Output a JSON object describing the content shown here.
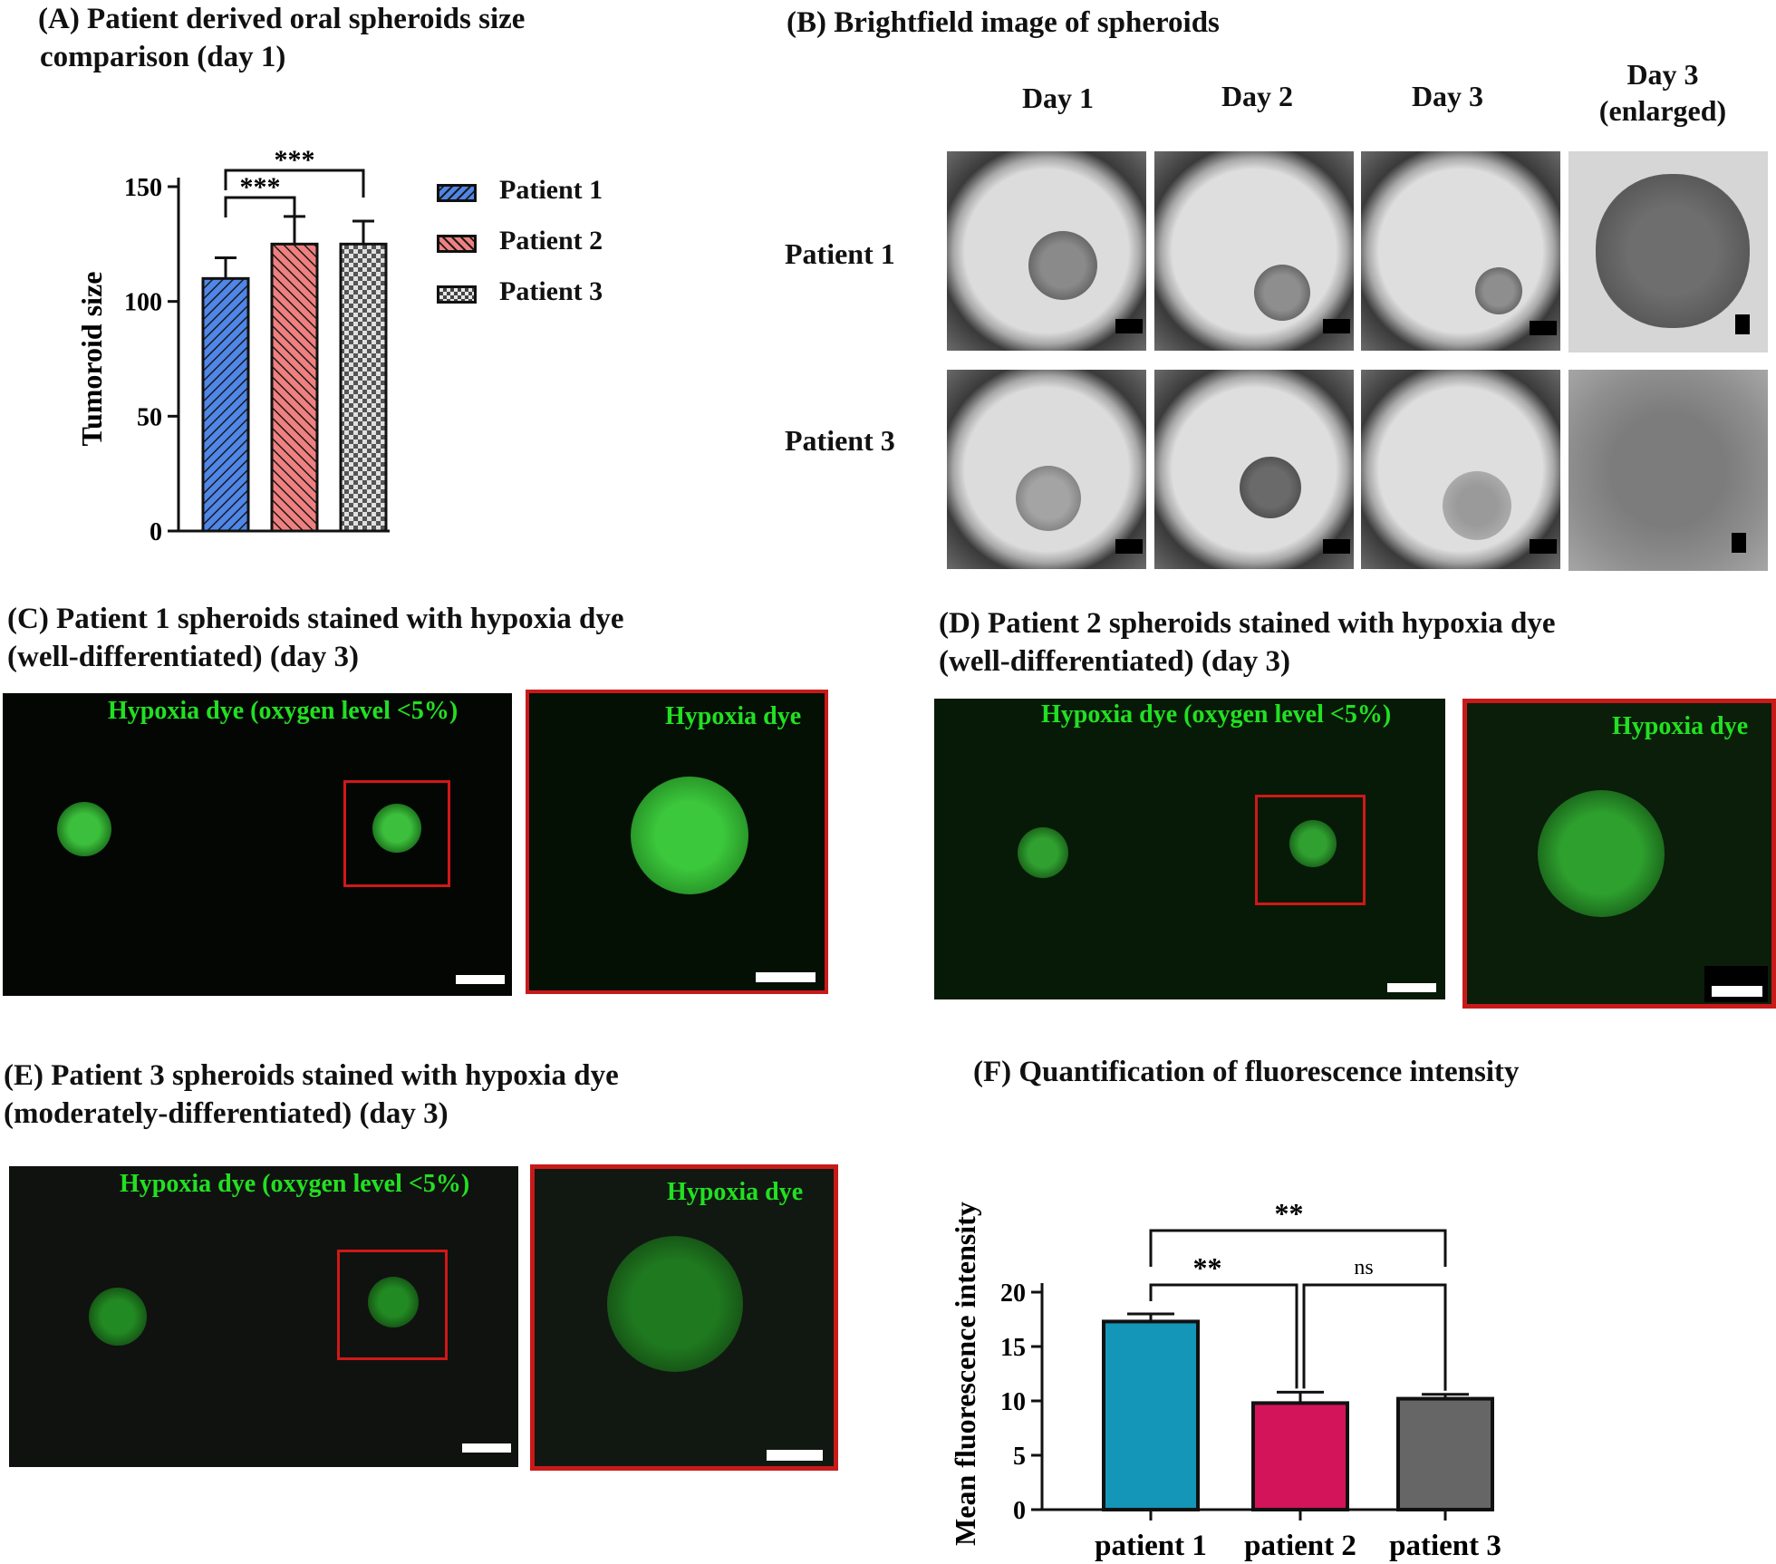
{
  "panels": {
    "A": {
      "title_line1": "(A) Patient derived oral spheroids size",
      "title_line2": "comparison (day 1)"
    },
    "B": {
      "title": "(B) Brightfield image of spheroids",
      "columns": [
        "Day 1",
        "Day 2",
        "Day 3",
        "Day 3",
        "(enlarged)"
      ],
      "rows": [
        "Patient 1",
        "Patient 3"
      ]
    },
    "C": {
      "title_line1": "(C) Patient 1 spheroids stained with hypoxia dye",
      "title_line2": "(well-differentiated) (day 3)"
    },
    "D": {
      "title_line1": "(D) Patient 2 spheroids stained with hypoxia dye",
      "title_line2": "(well-differentiated) (day 3)"
    },
    "E": {
      "title_line1": "(E) Patient 3 spheroids stained with hypoxia dye",
      "title_line2": "(moderately-differentiated) (day 3)"
    },
    "F": {
      "title": "(F) Quantification of fluorescence intensity"
    }
  },
  "micro_labels": {
    "overview": "Hypoxia dye (oxygen level <5%)",
    "zoom": "Hypoxia dye"
  },
  "chart_data": [
    {
      "type": "bar",
      "panel": "A",
      "ylabel": "Tumoroid size",
      "ylim": [
        0,
        150
      ],
      "yticks": [
        "0",
        "50",
        "100",
        "150"
      ],
      "series": [
        {
          "name": "Patient 1",
          "value": 110,
          "error": 9,
          "color": "#4f86e8",
          "pattern": "hatch-forward"
        },
        {
          "name": "Patient 2",
          "value": 125,
          "error": 12,
          "color": "#f08080",
          "pattern": "hatch-back"
        },
        {
          "name": "Patient 3",
          "value": 125,
          "error": 10,
          "color": "#555555",
          "pattern": "checker"
        }
      ],
      "significance": [
        {
          "pair": [
            "Patient 1",
            "Patient 2"
          ],
          "label": "***"
        },
        {
          "pair": [
            "Patient 1",
            "Patient 3"
          ],
          "label": "***"
        }
      ],
      "legend": "right"
    },
    {
      "type": "bar",
      "panel": "F",
      "ylabel": "Mean fluorescence intensity",
      "ylim": [
        0,
        20
      ],
      "yticks": [
        "0",
        "5",
        "10",
        "15",
        "20"
      ],
      "categories": [
        "patient 1",
        "patient 2",
        "patient 3"
      ],
      "values": [
        17.3,
        9.8,
        10.2
      ],
      "errors": [
        0.7,
        1.0,
        0.4
      ],
      "colors": [
        "#1496b8",
        "#d4145a",
        "#666666"
      ],
      "significance": [
        {
          "pair": [
            "patient 1",
            "patient 3"
          ],
          "label": "**"
        },
        {
          "pair": [
            "patient 1",
            "patient 2"
          ],
          "label": "**"
        },
        {
          "pair": [
            "patient 2",
            "patient 3"
          ],
          "label": "ns"
        }
      ]
    }
  ]
}
